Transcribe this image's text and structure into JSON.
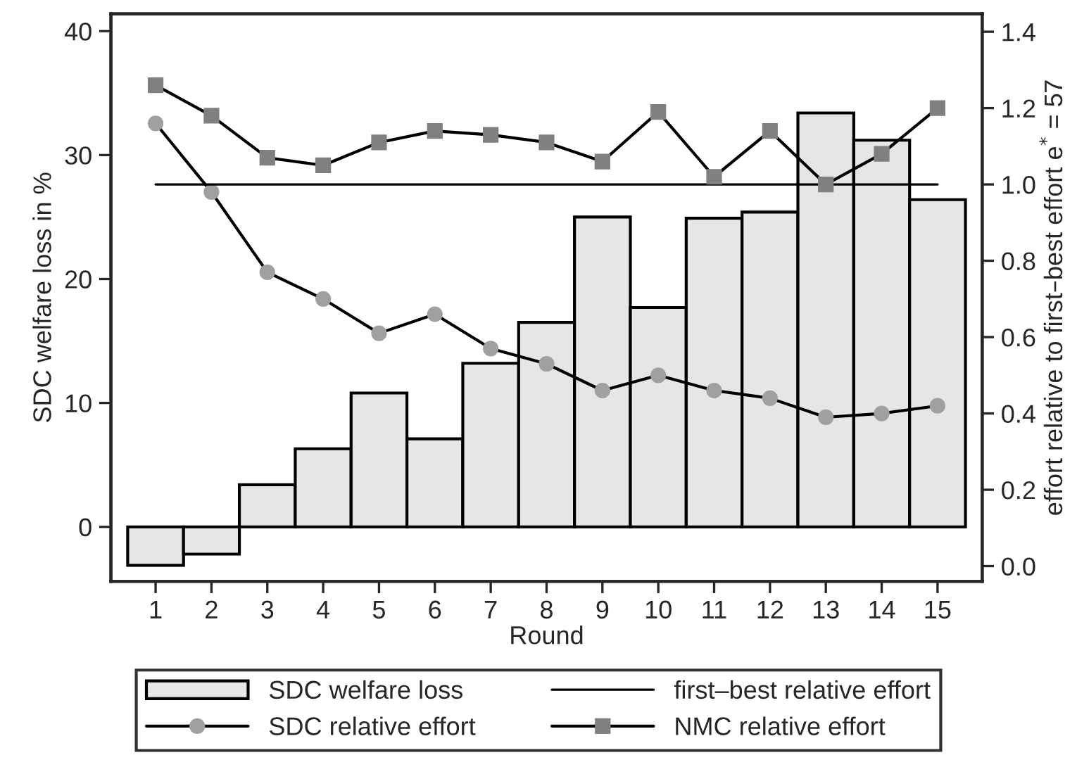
{
  "chart_data": {
    "type": "bar",
    "xlabel": "Round",
    "ylabel": "SDC welfare loss in %",
    "y2label": "effort relative to first–best effort e$^{*}$ = 57",
    "categories": [
      "1",
      "2",
      "3",
      "4",
      "5",
      "6",
      "7",
      "8",
      "9",
      "10",
      "11",
      "12",
      "13",
      "14",
      "15"
    ],
    "series": [
      {
        "name": "SDC welfare loss",
        "color": "#e6e6e6",
        "values": [
          -3.1,
          -2.2,
          3.4,
          6.3,
          10.8,
          7.1,
          13.2,
          16.5,
          25.0,
          17.7,
          24.9,
          25.4,
          33.4,
          31.2,
          26.4
        ]
      },
      {
        "name": "SDC relative effort",
        "type": "line",
        "axis": "y2",
        "marker": "circle",
        "color": "#a0a0a0",
        "values": [
          1.16,
          0.98,
          0.77,
          0.7,
          0.61,
          0.66,
          0.57,
          0.53,
          0.46,
          0.5,
          0.46,
          0.44,
          0.39,
          0.4,
          0.42
        ]
      },
      {
        "name": "first–best relative effort",
        "type": "line",
        "axis": "y2",
        "marker": "none",
        "color": "#000000",
        "values": [
          1.0,
          1.0,
          1.0,
          1.0,
          1.0,
          1.0,
          1.0,
          1.0,
          1.0,
          1.0,
          1.0,
          1.0,
          1.0,
          1.0,
          1.0
        ]
      },
      {
        "name": "NMC relative effort",
        "type": "line",
        "axis": "y2",
        "marker": "square",
        "color": "#808080",
        "values": [
          1.26,
          1.18,
          1.07,
          1.05,
          1.11,
          1.14,
          1.13,
          1.11,
          1.06,
          1.19,
          1.02,
          1.14,
          1.0,
          1.08,
          1.2
        ]
      }
    ],
    "ylim": [
      -4.4,
      41.4
    ],
    "yticks": [
      0,
      10,
      20,
      30,
      40
    ],
    "y2lim": [
      -0.04,
      1.447
    ],
    "y2ticks": [
      {
        "value": 0,
        "label": "0.0"
      },
      0.2,
      0.4,
      0.6,
      0.8,
      {
        "value": 1,
        "label": "1.0"
      },
      1.2,
      1.4
    ],
    "grid": false,
    "legend": "bottom"
  }
}
